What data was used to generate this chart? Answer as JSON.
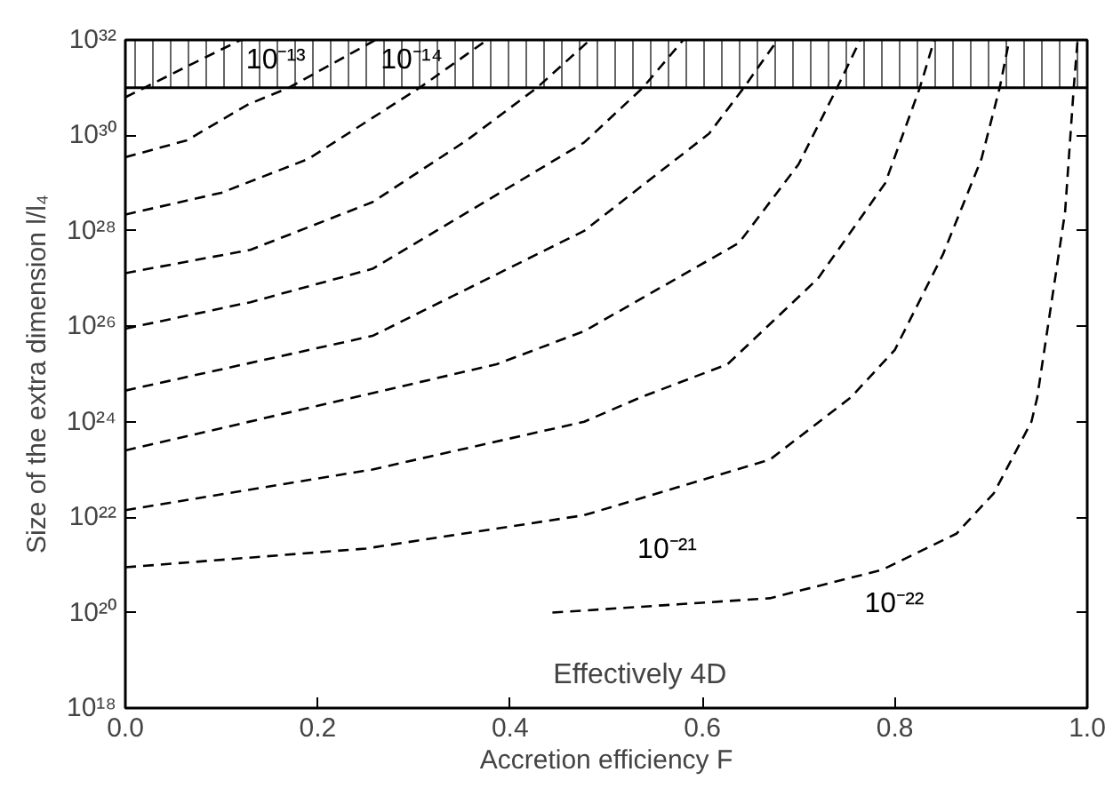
{
  "chart_data": {
    "type": "line",
    "xlabel": "Accretion efficiency F",
    "ylabel": "Size of the extra dimension l/l₄",
    "log": "y",
    "grid": false,
    "marker": "none",
    "line_style": "dashed",
    "xlim": [
      0,
      1
    ],
    "ylim": [
      1e+18,
      1e+32
    ],
    "xticks": [
      {
        "value": 0,
        "label": "0.0"
      },
      {
        "value": 0.2,
        "label": "0.2"
      },
      {
        "value": 0.4,
        "label": "0.4"
      },
      {
        "value": 0.6,
        "label": "0.6"
      },
      {
        "value": 0.8,
        "label": "0.8"
      },
      {
        "value": 1,
        "label": "1.0"
      }
    ],
    "yticks": [
      {
        "value": 1e+18,
        "label": "10¹⁸"
      },
      {
        "value": 1e+20,
        "label": "10²⁰"
      },
      {
        "value": 1e+22,
        "label": "10²²"
      },
      {
        "value": 1e+24,
        "label": "10²⁴"
      },
      {
        "value": 1e+26,
        "label": "10²⁶"
      },
      {
        "value": 1e+28,
        "label": "10²⁸"
      },
      {
        "value": 1e+30,
        "label": "10³⁰"
      },
      {
        "value": 1e+32,
        "label": "10³²"
      }
    ],
    "bands": [
      {
        "axis": "y",
        "from": 1e+31,
        "to": 1e+32,
        "color": "#000000"
      }
    ],
    "annotations": [
      "Effectively 4D"
    ],
    "series": [
      {
        "name": "10⁻¹³",
        "color": "#000000",
        "x": [
          0,
          0.02,
          0.07,
          0.12
        ],
        "values": [
          6.3e+30,
          1e+31,
          3.2e+31,
          1e+32
        ]
      },
      {
        "name": "10⁻¹⁴",
        "color": "#000000",
        "x": [
          0,
          0.064,
          0.128,
          0.17,
          0.26
        ],
        "values": [
          3.5e+29,
          7.9e+29,
          4.5e+30,
          1e+31,
          1e+32
        ]
      },
      {
        "color": "#000000",
        "x": [
          0,
          0.1,
          0.19,
          0.306,
          0.376
        ],
        "values": [
          2.2e+28,
          6.3e+28,
          3.2e+29,
          1e+31,
          1e+32
        ]
      },
      {
        "color": "#000000",
        "x": [
          0,
          0.13,
          0.257,
          0.355,
          0.428,
          0.483
        ],
        "values": [
          1.3e+27,
          4e+27,
          4e+28,
          7.9e+29,
          1e+31,
          1e+32
        ]
      },
      {
        "color": "#000000",
        "x": [
          0,
          0.13,
          0.257,
          0.477,
          0.538,
          0.58
        ],
        "values": [
          8.9e+25,
          3.2e+26,
          1.6e+27,
          7.1e+29,
          1e+31,
          1e+32
        ]
      },
      {
        "color": "#000000",
        "x": [
          0,
          0.257,
          0.477,
          0.607,
          0.643,
          0.678
        ],
        "values": [
          4.5e+24,
          6.3e+25,
          1e+28,
          1.1e+30,
          1e+31,
          1e+32
        ]
      },
      {
        "color": "#000000",
        "x": [
          0,
          0.386,
          0.477,
          0.638,
          0.7,
          0.74,
          0.764
        ],
        "values": [
          2.5e+23,
          1.6e+25,
          7.9e+25,
          5.6e+27,
          2.5e+29,
          1e+31,
          1e+32
        ]
      },
      {
        "color": "#000000",
        "x": [
          0,
          0.257,
          0.477,
          0.535,
          0.626,
          0.72,
          0.79,
          0.826,
          0.841
        ],
        "values": [
          1.4e+22,
          1e+23,
          1e+24,
          3.2e+24,
          1.6e+25,
          1e+27,
          1e+29,
          1e+31,
          1e+32
        ]
      },
      {
        "name": "10⁻²¹",
        "color": "#000000",
        "x": [
          0,
          0.25,
          0.477,
          0.67,
          0.754,
          0.8,
          0.85,
          0.89,
          0.909,
          0.919
        ],
        "values": [
          8.9e+20,
          2.2e+21,
          1.1e+22,
          1.6e+23,
          3.2e+24,
          3.2e+25,
          3.2e+27,
          3.2e+29,
          1e+31,
          1e+32
        ]
      },
      {
        "name": "10⁻²²",
        "color": "#000000",
        "x": [
          0.444,
          0.67,
          0.787,
          0.864,
          0.903,
          0.942,
          0.948,
          0.977,
          0.986,
          0.99
        ],
        "values": [
          1e+20,
          2e+20,
          7.9e+20,
          4.5e+21,
          3.2e+22,
          1e+24,
          3.2e+24,
          2.5e+28,
          1e+31,
          1e+32
        ]
      }
    ]
  }
}
